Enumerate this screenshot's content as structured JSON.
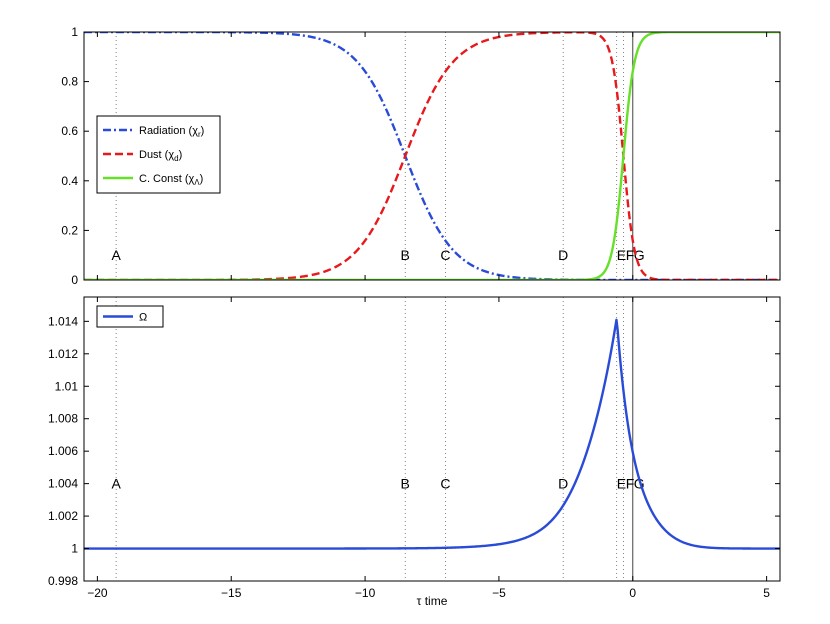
{
  "chart_data": [
    {
      "type": "line",
      "panel": "top",
      "xlim": [
        -20.5,
        5.5
      ],
      "ylim": [
        0,
        1
      ],
      "xticks": [
        -20,
        -15,
        -10,
        -5,
        0,
        5
      ],
      "yticks": [
        0,
        0.2,
        0.4,
        0.6,
        0.8,
        1
      ],
      "ytick_labels": [
        "0",
        "0.2",
        "0.4",
        "0.6",
        "0.8",
        "1"
      ],
      "grid": false,
      "legend_position": "center-left",
      "series": [
        {
          "name": "Radiation (χr)",
          "label_main": "Radiation (χ",
          "label_sub": "r",
          "color": "#2a4bd7",
          "style": "dashdot",
          "shape": "falling-logistic",
          "center": -8.5,
          "width": 0.9,
          "x": [
            -20.5,
            -15,
            -12,
            -10,
            -8.5,
            -7,
            -5,
            -2.6,
            0,
            5.5
          ],
          "y": [
            1.0,
            0.998,
            0.96,
            0.84,
            0.5,
            0.16,
            0.02,
            0.002,
            0.0,
            0.0
          ]
        },
        {
          "name": "Dust (χd)",
          "label_main": "Dust (χ",
          "label_sub": "d",
          "color": "#e8191c",
          "style": "dashed",
          "shape": "bump",
          "center_rise": -8.5,
          "width_rise": 0.9,
          "center_fall": -0.35,
          "width_fall": 0.21,
          "x": [
            -20.5,
            -15,
            -12,
            -10,
            -8.5,
            -7,
            -5,
            -2.6,
            -1,
            -0.35,
            0,
            1,
            5.5
          ],
          "y": [
            0.0,
            0.002,
            0.04,
            0.16,
            0.5,
            0.84,
            0.98,
            0.998,
            0.95,
            0.5,
            0.16,
            0.01,
            0.0
          ]
        },
        {
          "name": "C. Const (χΛ)",
          "label_main": "C. Const (χ",
          "label_sub": "Λ",
          "color": "#66e028",
          "style": "solid",
          "shape": "rising-logistic",
          "center": -0.35,
          "width": 0.21,
          "x": [
            -20.5,
            -5,
            -2.6,
            -1,
            -0.35,
            0,
            1,
            2,
            5.5
          ],
          "y": [
            0.0,
            0.0,
            0.0,
            0.05,
            0.5,
            0.84,
            0.99,
            1.0,
            1.0
          ]
        }
      ],
      "markers": [
        {
          "label": "A",
          "x": -19.3
        },
        {
          "label": "B",
          "x": -8.5
        },
        {
          "label": "C",
          "x": -7.0
        },
        {
          "label": "D",
          "x": -2.6
        },
        {
          "label": "E",
          "x": -0.6
        },
        {
          "label": "F",
          "x": -0.35
        },
        {
          "label": "G",
          "x": 0.0
        }
      ],
      "marker_label_y": 0.1
    },
    {
      "type": "line",
      "panel": "bottom",
      "xlim": [
        -20.5,
        5.5
      ],
      "ylim": [
        0.998,
        1.0155
      ],
      "xticks": [
        -20,
        -15,
        -10,
        -5,
        0,
        5
      ],
      "xtick_labels": [
        "−20",
        "−15",
        "−10",
        "−5",
        "0",
        "5"
      ],
      "yticks": [
        0.998,
        1,
        1.002,
        1.004,
        1.006,
        1.008,
        1.01,
        1.012,
        1.014
      ],
      "ytick_labels": [
        "0.998",
        "1",
        "1.002",
        "1.004",
        "1.006",
        "1.008",
        "1.01",
        "1.012",
        "1.014"
      ],
      "xlabel": "τ time",
      "grid": false,
      "legend_position": "top-left",
      "series": [
        {
          "name": "Ω",
          "color": "#2a4bd7",
          "style": "solid",
          "shape": "peak",
          "baseline": 1.0,
          "peak_value": 1.0142,
          "peak_x": -0.6,
          "x": [
            -20.5,
            -10,
            -7,
            -5,
            -3,
            -2,
            -1.2,
            -0.6,
            0,
            0.5,
            1,
            2,
            3,
            5.5
          ],
          "y": [
            1.0,
            1.0,
            1.0001,
            1.0004,
            1.0021,
            1.0048,
            1.0104,
            1.0142,
            1.0101,
            1.0051,
            1.0025,
            1.0004,
            1.0001,
            1.0
          ]
        }
      ],
      "markers": [
        {
          "label": "A",
          "x": -19.3
        },
        {
          "label": "B",
          "x": -8.5
        },
        {
          "label": "C",
          "x": -7.0
        },
        {
          "label": "D",
          "x": -2.6
        },
        {
          "label": "E",
          "x": -0.6
        },
        {
          "label": "F",
          "x": -0.35
        },
        {
          "label": "G",
          "x": 0.0
        }
      ],
      "marker_label_y": 1.004
    }
  ]
}
